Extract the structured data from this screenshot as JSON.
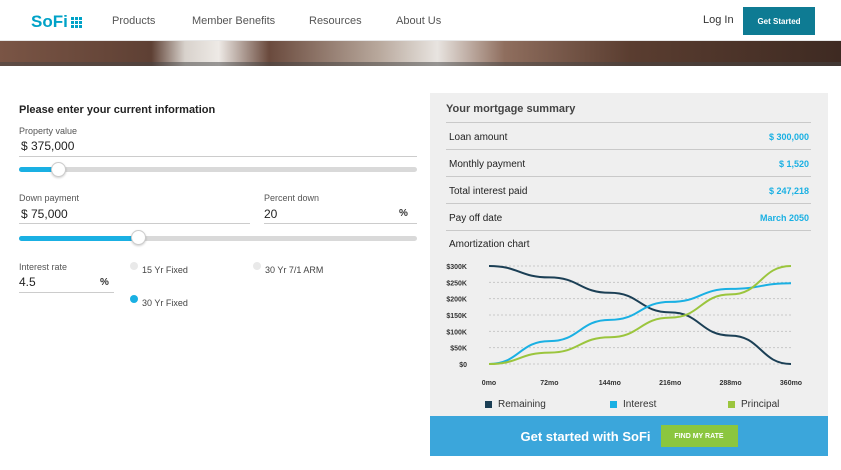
{
  "nav": {
    "logo": "SoFi",
    "links": [
      "Products",
      "Member Benefits",
      "Resources",
      "About Us"
    ],
    "login": "Log In",
    "get_started": "Get Started"
  },
  "form": {
    "title": "Please enter your current information",
    "property_value": {
      "label": "Property value",
      "value": "$ 375,000"
    },
    "property_slider_level": 0.1,
    "down_payment": {
      "label": "Down payment",
      "value": "$ 75,000"
    },
    "percent_down": {
      "label": "Percent down",
      "value": "20",
      "unit": "%"
    },
    "down_slider_level": 0.3,
    "interest_rate": {
      "label": "Interest rate",
      "value": "4.5",
      "unit": "%"
    },
    "loan_types": [
      {
        "label": "15 Yr Fixed",
        "selected": false
      },
      {
        "label": "30 Yr 7/1 ARM",
        "selected": false
      },
      {
        "label": "30 Yr Fixed",
        "selected": true
      }
    ]
  },
  "summary": {
    "title": "Your mortgage summary",
    "rows": [
      {
        "label": "Loan amount",
        "value": "$ 300,000"
      },
      {
        "label": "Monthly payment",
        "value": "$ 1,520"
      },
      {
        "label": "Total interest paid",
        "value": "$ 247,218"
      },
      {
        "label": "Pay off date",
        "value": "March 2050"
      }
    ],
    "chart_title": "Amortization chart"
  },
  "chart_data": {
    "type": "line",
    "x": [
      0,
      72,
      144,
      216,
      288,
      360
    ],
    "x_tick_labels": [
      "0mo",
      "72mo",
      "144mo",
      "216mo",
      "288mo",
      "360mo"
    ],
    "y_tick_labels": [
      "$0",
      "$50K",
      "$100K",
      "$150K",
      "$200K",
      "$250K",
      "$300K"
    ],
    "y_ticks": [
      0,
      50000,
      100000,
      150000,
      200000,
      250000,
      300000
    ],
    "ylim": [
      0,
      300000
    ],
    "xlim": [
      0,
      360
    ],
    "grid": true,
    "legend_position": "bottom",
    "series": [
      {
        "name": "Remaining",
        "color": "#1b3f55",
        "values": [
          300000,
          265000,
          218000,
          158000,
          87000,
          0
        ]
      },
      {
        "name": "Interest",
        "color": "#1ab0e3",
        "values": [
          0,
          70000,
          135000,
          190000,
          230000,
          247218
        ]
      },
      {
        "name": "Principal",
        "color": "#9bc53d",
        "values": [
          0,
          35000,
          82000,
          142000,
          213000,
          300000
        ]
      }
    ]
  },
  "cta": {
    "text": "Get started with SoFi",
    "button": "FIND MY RATE"
  },
  "colors": {
    "accent": "#1ab0e3",
    "nav_button": "#0e7b93",
    "cta_bar": "#3ba6db",
    "cta_button": "#8bc63f"
  }
}
